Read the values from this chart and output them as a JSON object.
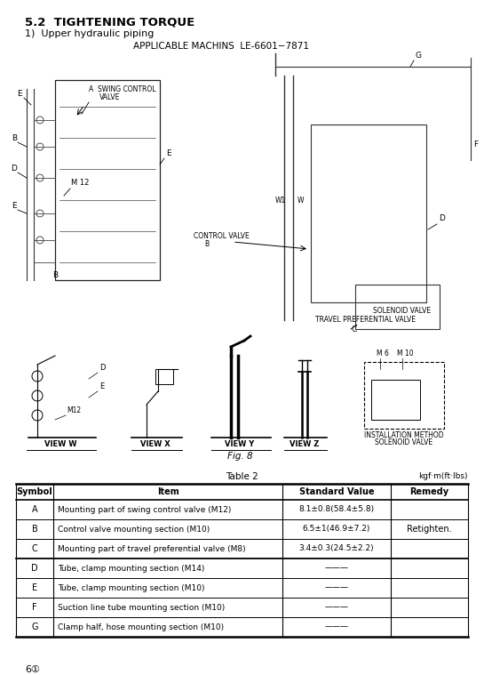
{
  "title_section": "5.2  TIGHTENING TORQUE",
  "subtitle": "1)  Upper hydraulic piping",
  "applicable": "APPLICABLE MACHINS  LE-6601−7871",
  "fig_label": "Fig. 8",
  "table_title": "Table 2",
  "table_unit": "kgf·m(ft·lbs)",
  "table_headers": [
    "Symbol",
    "Item",
    "Standard Value",
    "Remedy"
  ],
  "table_rows": [
    [
      "A",
      "Mounting part of swing control valve (M12)",
      "8.1±0.8(58.4±5.8)",
      ""
    ],
    [
      "B",
      "Control valve mounting section (M10)",
      "6.5±1(46.9±7.2)",
      ""
    ],
    [
      "C",
      "Mounting part of travel preferential valve (M8)",
      "3.4±0.3(24.5±2.2)",
      "Retighten."
    ],
    [
      "D",
      "Tube, clamp mounting section (M14)",
      "———",
      ""
    ],
    [
      "E",
      "Tube, clamp mounting section (M10)",
      "———",
      ""
    ],
    [
      "F",
      "Suction line tube mounting section (M10)",
      "———",
      ""
    ],
    [
      "G",
      "Clamp half, hose mounting section (M10)",
      "———",
      ""
    ]
  ],
  "page_number": "6①",
  "bg_color": "#ffffff",
  "text_color": "#000000"
}
